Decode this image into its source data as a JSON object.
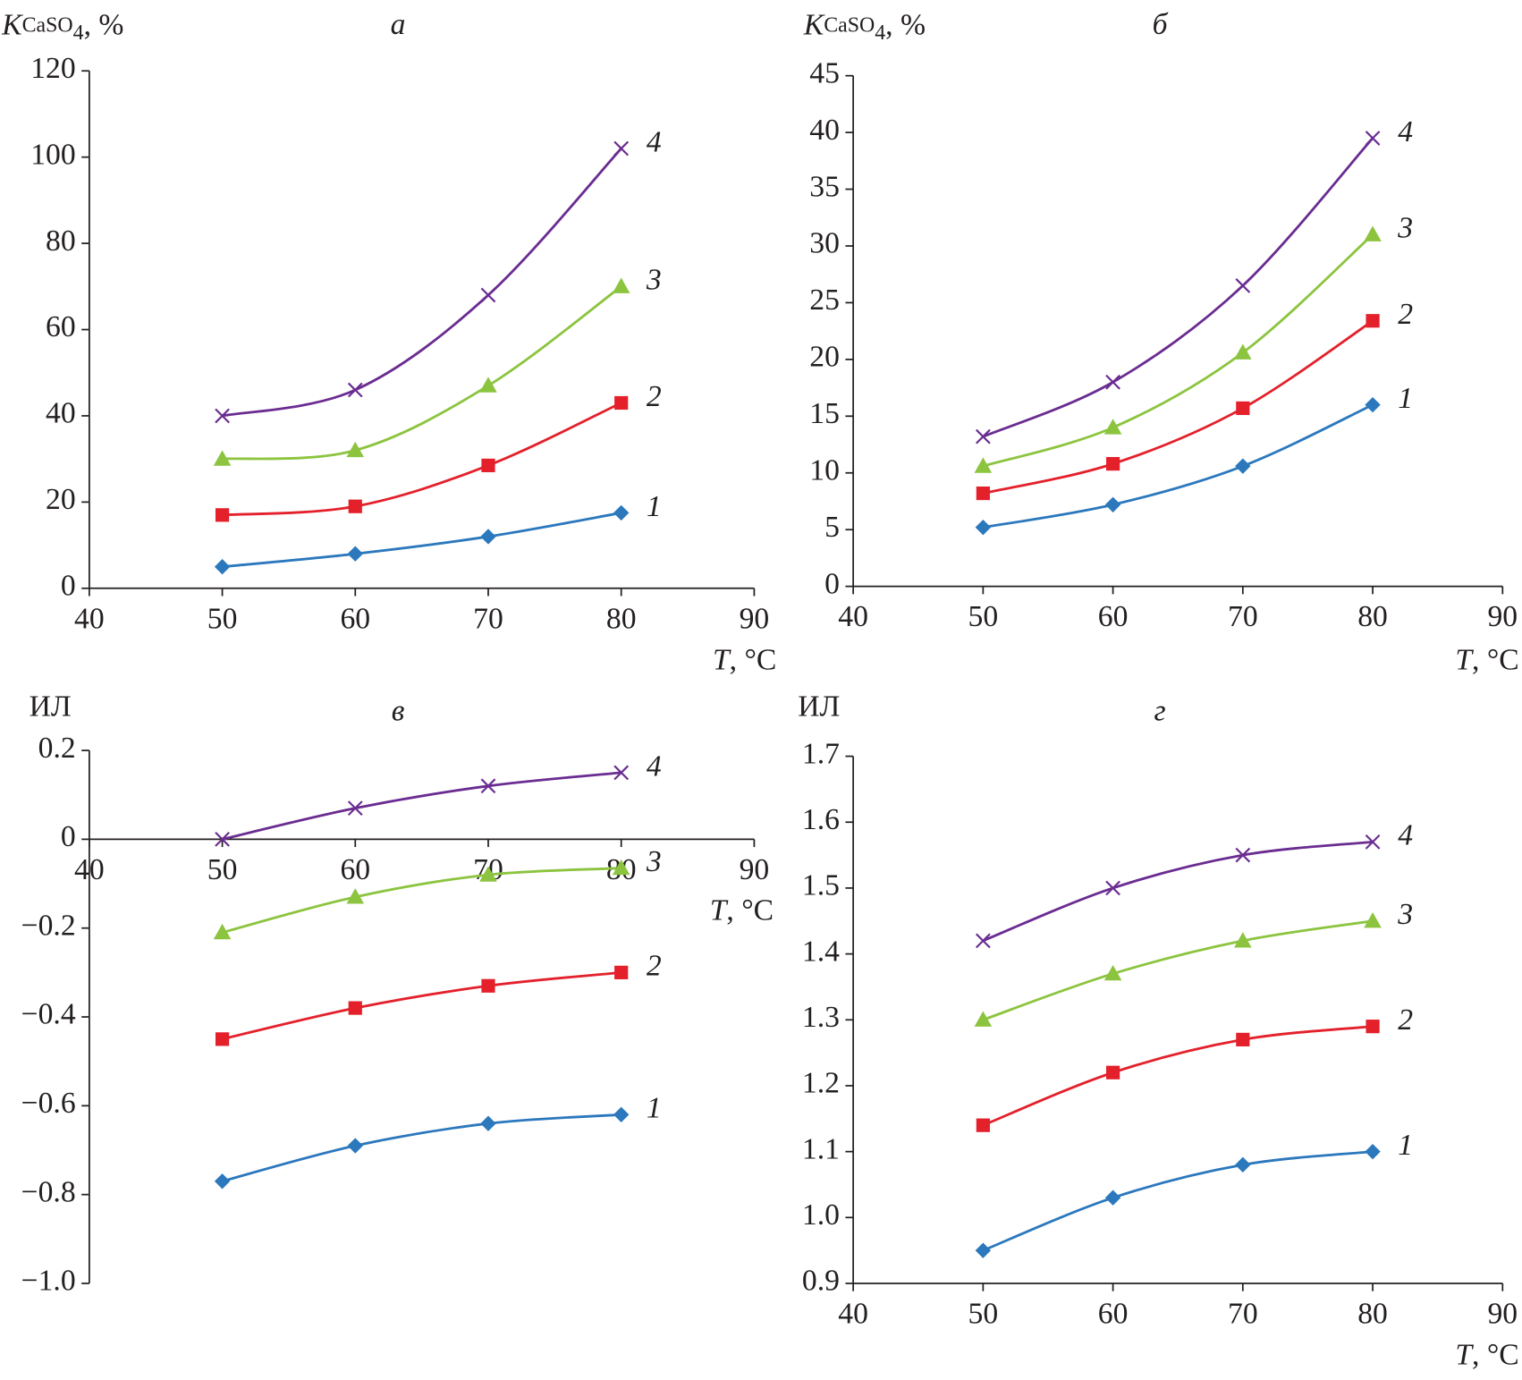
{
  "chart_data": [
    {
      "type": "line",
      "title": "а",
      "ylabel": [
        "K",
        "CaSO",
        "4",
        ", %"
      ],
      "xlabel": [
        "T",
        ", °C"
      ],
      "x": [
        50,
        60,
        70,
        80
      ],
      "xlim": [
        40,
        90
      ],
      "xticks": [
        40,
        50,
        60,
        70,
        80,
        90
      ],
      "ylim": [
        0,
        120
      ],
      "yticks": [
        0,
        20,
        40,
        60,
        80,
        100,
        120
      ],
      "series": [
        {
          "name": "1",
          "color": "#2b78bd",
          "marker": "diamond",
          "values": [
            5,
            8,
            12,
            17.5
          ]
        },
        {
          "name": "2",
          "color": "#e4202b",
          "marker": "square",
          "values": [
            17,
            19,
            28.5,
            43
          ]
        },
        {
          "name": "3",
          "color": "#8cc43f",
          "marker": "triangle",
          "values": [
            30,
            32,
            47,
            70
          ]
        },
        {
          "name": "4",
          "color": "#6a2c91",
          "marker": "x",
          "values": [
            40,
            46,
            68,
            102
          ]
        }
      ]
    },
    {
      "type": "line",
      "title": "б",
      "ylabel": [
        "K",
        "CaSO",
        "4",
        ", %"
      ],
      "xlabel": [
        "T",
        ", °C"
      ],
      "x": [
        50,
        60,
        70,
        80
      ],
      "xlim": [
        40,
        90
      ],
      "xticks": [
        40,
        50,
        60,
        70,
        80,
        90
      ],
      "ylim": [
        0,
        45
      ],
      "yticks": [
        0,
        5,
        10,
        15,
        20,
        25,
        30,
        35,
        40,
        45
      ],
      "series": [
        {
          "name": "1",
          "color": "#2b78bd",
          "marker": "diamond",
          "values": [
            5.2,
            7.2,
            10.6,
            16
          ]
        },
        {
          "name": "2",
          "color": "#e4202b",
          "marker": "square",
          "values": [
            8.2,
            10.8,
            15.7,
            23.4
          ]
        },
        {
          "name": "3",
          "color": "#8cc43f",
          "marker": "triangle",
          "values": [
            10.6,
            14,
            20.6,
            31
          ]
        },
        {
          "name": "4",
          "color": "#6a2c91",
          "marker": "x",
          "values": [
            13.2,
            18,
            26.5,
            39.5
          ]
        }
      ]
    },
    {
      "type": "line",
      "title": "в",
      "ylabel": [
        "ИЛ"
      ],
      "xlabel": [
        "T",
        ", °C"
      ],
      "x": [
        50,
        60,
        70,
        80
      ],
      "xlim": [
        40,
        90
      ],
      "xticks": [
        40,
        50,
        60,
        70,
        80,
        90
      ],
      "ylim": [
        -1,
        0.2
      ],
      "yticks": [
        {
          "value": -1,
          "label": "−1.0"
        },
        {
          "value": -0.8,
          "label": "−0.8"
        },
        {
          "value": -0.6,
          "label": "−0.6"
        },
        {
          "value": -0.4,
          "label": "−0.4"
        },
        {
          "value": -0.2,
          "label": "−0.2"
        },
        0,
        0.2
      ],
      "series": [
        {
          "name": "1",
          "color": "#2b78bd",
          "marker": "diamond",
          "values": [
            -0.77,
            -0.69,
            -0.64,
            -0.62
          ]
        },
        {
          "name": "2",
          "color": "#e4202b",
          "marker": "square",
          "values": [
            -0.45,
            -0.38,
            -0.33,
            -0.3
          ]
        },
        {
          "name": "3",
          "color": "#8cc43f",
          "marker": "triangle",
          "values": [
            -0.21,
            -0.13,
            -0.08,
            -0.065
          ]
        },
        {
          "name": "4",
          "color": "#6a2c91",
          "marker": "x",
          "values": [
            0,
            0.07,
            0.12,
            0.15
          ]
        }
      ]
    },
    {
      "type": "line",
      "title": "г",
      "ylabel": [
        "ИЛ"
      ],
      "xlabel": [
        "T",
        ", °C"
      ],
      "x": [
        50,
        60,
        70,
        80
      ],
      "xlim": [
        40,
        90
      ],
      "xticks": [
        40,
        50,
        60,
        70,
        80,
        90
      ],
      "ylim": [
        0.9,
        1.7
      ],
      "yticks": [
        0.9,
        {
          "value": 1,
          "label": "1.0"
        },
        1.1,
        1.2,
        1.3,
        1.4,
        1.5,
        1.6,
        1.7
      ],
      "series": [
        {
          "name": "1",
          "color": "#2b78bd",
          "marker": "diamond",
          "values": [
            0.95,
            1.03,
            1.08,
            1.1
          ]
        },
        {
          "name": "2",
          "color": "#e4202b",
          "marker": "square",
          "values": [
            1.14,
            1.22,
            1.27,
            1.29
          ]
        },
        {
          "name": "3",
          "color": "#8cc43f",
          "marker": "triangle",
          "values": [
            1.3,
            1.37,
            1.42,
            1.45
          ]
        },
        {
          "name": "4",
          "color": "#6a2c91",
          "marker": "x",
          "values": [
            1.42,
            1.5,
            1.55,
            1.57
          ]
        }
      ]
    }
  ]
}
